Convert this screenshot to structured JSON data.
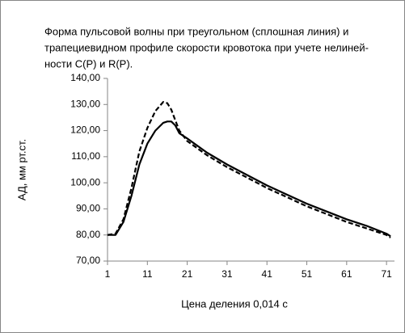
{
  "chart_data": {
    "type": "line",
    "title": [
      "Форма пульсовой волны при треугольном (сплошная линия) и",
      "трапециевидном  профиле скорости кровотока при учете нелиней-",
      "ности C(P) и R(P)."
    ],
    "x_label": "Цена деления 0,014 с",
    "y_label": "АД, мм рт.ст.",
    "x": [
      1,
      3,
      5,
      7,
      9,
      11,
      13,
      15,
      16,
      17,
      18,
      19,
      21,
      26,
      31,
      36,
      41,
      46,
      51,
      56,
      61,
      66,
      71,
      72
    ],
    "series": [
      {
        "color": "#000000",
        "dash": "solid",
        "values": [
          80,
          80,
          85,
          95,
          107,
          115,
          120,
          123,
          123.5,
          123.5,
          122,
          119,
          117,
          111.5,
          107,
          103,
          99,
          95.5,
          92,
          89,
          86,
          83.5,
          80.5,
          79.5
        ]
      },
      {
        "color": "#000000",
        "dash": "dashed",
        "values": [
          80,
          80.5,
          86,
          98,
          112,
          121,
          127.5,
          131,
          130.5,
          128,
          124,
          120,
          116,
          110.5,
          106,
          102,
          98,
          94.5,
          91,
          88,
          85,
          82.5,
          80,
          79
        ]
      }
    ],
    "xlim": [
      1,
      73
    ],
    "xticks": [
      1,
      11,
      21,
      31,
      41,
      51,
      61,
      71
    ],
    "ylim": [
      70,
      140
    ],
    "yticks": [
      {
        "value": 70,
        "label": "70,00"
      },
      {
        "value": 80,
        "label": "80,00"
      },
      {
        "value": 90,
        "label": "90,00"
      },
      {
        "value": 100,
        "label": "100,00"
      },
      {
        "value": 110,
        "label": "110,00"
      },
      {
        "value": 120,
        "label": "120,00"
      },
      {
        "value": 130,
        "label": "130,00"
      },
      {
        "value": 140,
        "label": "140,00"
      }
    ],
    "grid": false
  }
}
